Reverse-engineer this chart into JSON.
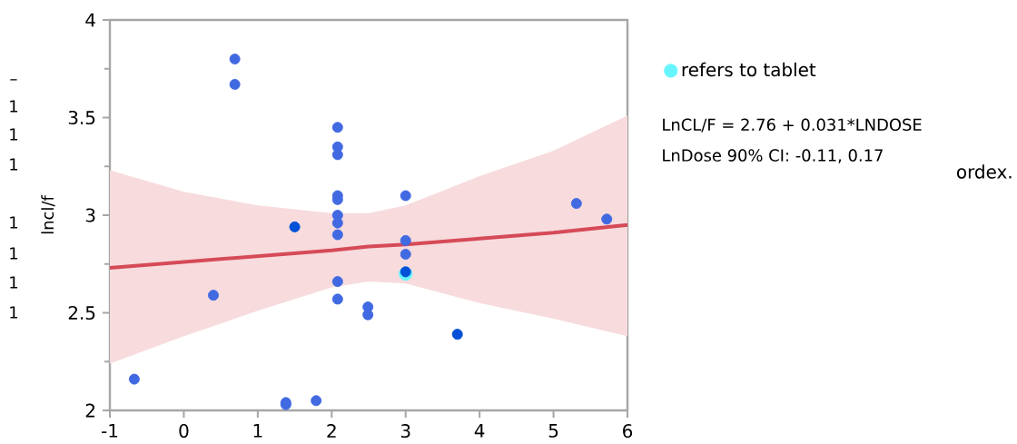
{
  "chart_data": {
    "type": "scatter",
    "ylabel": "lncl/f",
    "xlim": [
      -1,
      6
    ],
    "ylim": [
      2,
      4
    ],
    "xticks": [
      -1,
      0,
      1,
      2,
      3,
      4,
      5,
      6
    ],
    "yticks": [
      2,
      2.5,
      3,
      3.5,
      4
    ],
    "grid": false,
    "legend": "right",
    "series": [
      {
        "color": "#4169e1",
        "marker": "circle",
        "x": [
          0.69,
          0.69,
          -0.67,
          0.4,
          1.38,
          1.38,
          1.79,
          2.08,
          2.08,
          2.08,
          2.08,
          2.08,
          2.08,
          2.08,
          2.08,
          2.08,
          2.08,
          2.49,
          2.49,
          3.0,
          3.0,
          3.0,
          5.31,
          5.72
        ],
        "values": [
          3.8,
          3.67,
          2.16,
          2.59,
          2.04,
          2.03,
          2.05,
          3.45,
          3.35,
          3.31,
          3.1,
          3.08,
          3.0,
          2.96,
          2.9,
          2.66,
          2.57,
          2.53,
          2.49,
          3.1,
          2.87,
          2.8,
          3.06,
          2.98
        ]
      },
      {
        "name": "refers to tablet",
        "color": "#66f5ff",
        "marker": "circle",
        "x": [
          3.0
        ],
        "values": [
          2.7
        ]
      },
      {
        "color": "#0050d8",
        "marker": "circle",
        "x": [
          1.5,
          3.0,
          3.7
        ],
        "values": [
          2.94,
          2.71,
          2.39
        ]
      },
      {
        "type": "line",
        "color": "#d64a57",
        "line_style": "solid",
        "marker": "none",
        "x": [
          -1,
          0,
          1,
          2,
          2.5,
          3,
          4,
          5,
          6
        ],
        "values": [
          2.73,
          2.76,
          2.79,
          2.82,
          2.84,
          2.85,
          2.88,
          2.91,
          2.95
        ],
        "lower": [
          2.24,
          2.38,
          2.51,
          2.63,
          2.66,
          2.65,
          2.55,
          2.47,
          2.38
        ],
        "upper": [
          3.23,
          3.12,
          3.05,
          3.01,
          3.01,
          3.05,
          3.2,
          3.33,
          3.51
        ]
      }
    ],
    "annotations": [
      "LnCL/F = 2.76 + 0.031*LNDOSE",
      "LnDose 90% CI: -0.11, 0.17",
      "ordex.",
      "–",
      "1",
      "1",
      "1",
      "1",
      "1",
      "1",
      "1"
    ]
  }
}
